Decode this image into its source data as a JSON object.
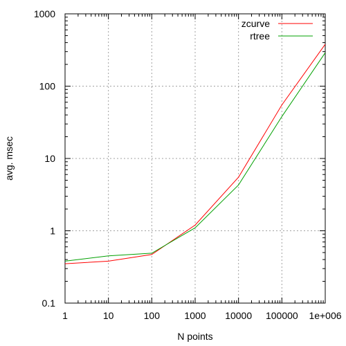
{
  "chart_data": {
    "type": "line",
    "xlabel": "N points",
    "ylabel": "avg. msec",
    "x_scale": "log",
    "y_scale": "log",
    "xlim": [
      1,
      1000000
    ],
    "ylim": [
      0.1,
      1000
    ],
    "x_ticks": [
      {
        "value": 1,
        "label": "1"
      },
      {
        "value": 10,
        "label": "10"
      },
      {
        "value": 100,
        "label": "100"
      },
      {
        "value": 1000,
        "label": "1000"
      },
      {
        "value": 10000,
        "label": "10000"
      },
      {
        "value": 100000,
        "label": "100000"
      },
      {
        "value": 1000000,
        "label": "1e+006"
      }
    ],
    "y_ticks": [
      {
        "value": 0.1,
        "label": "0.1"
      },
      {
        "value": 1,
        "label": "1"
      },
      {
        "value": 10,
        "label": "10"
      },
      {
        "value": 100,
        "label": "100"
      },
      {
        "value": 1000,
        "label": "1000"
      }
    ],
    "grid": true,
    "legend_position": "top-right",
    "series": [
      {
        "name": "zcurve",
        "color": "#ff0000",
        "x": [
          1,
          10,
          100,
          1000,
          10000,
          100000,
          1000000
        ],
        "y": [
          0.35,
          0.38,
          0.47,
          1.2,
          5.5,
          55,
          380
        ]
      },
      {
        "name": "rtree",
        "color": "#00a000",
        "x": [
          1,
          10,
          100,
          1000,
          10000,
          100000,
          1000000
        ],
        "y": [
          0.38,
          0.45,
          0.49,
          1.1,
          4.3,
          38,
          290
        ]
      }
    ]
  }
}
